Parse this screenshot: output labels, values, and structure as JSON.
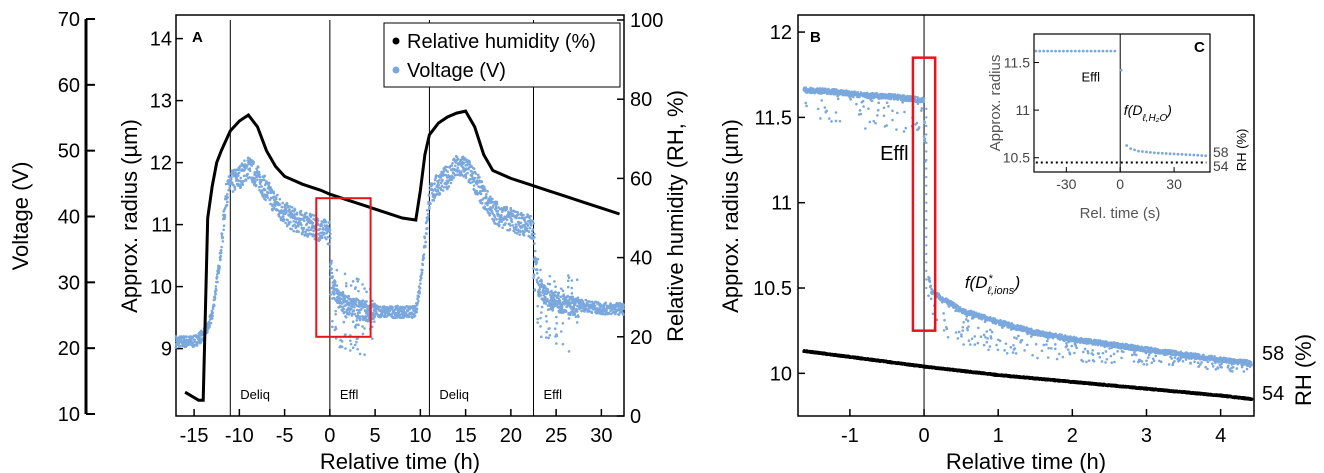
{
  "colors": {
    "humidity": "#000000",
    "voltage": "#7aa8dc",
    "highlight_box": "#e8141b"
  },
  "chart_data": [
    {
      "panel": "A",
      "type": "scatter",
      "x_axis": {
        "label": "Relative time (h)",
        "range": [
          -17,
          32.5
        ],
        "ticks": [
          -15,
          -10,
          -5,
          0,
          5,
          10,
          15,
          20,
          25,
          30
        ]
      },
      "y_axis_left_outer": {
        "label": "Voltage (V)",
        "range": [
          10,
          70
        ],
        "ticks": [
          10,
          20,
          30,
          40,
          50,
          60,
          70
        ]
      },
      "y_axis_left_inner": {
        "label": "Approx. radius  (µm)",
        "range": [
          8.3,
          14.3
        ],
        "ticks": [
          9,
          10,
          11,
          12,
          13,
          14
        ]
      },
      "y_axis_right": {
        "label": "Relative humidity (RH, %)",
        "range": [
          0,
          100
        ],
        "ticks": [
          0,
          20,
          40,
          60,
          80,
          100
        ]
      },
      "legend": {
        "placement": "top-right",
        "entries": [
          "Relative humidity (%)",
          "Voltage (V)"
        ]
      },
      "phase_markers": [
        {
          "x": -11,
          "label": "Deliq"
        },
        {
          "x": 0,
          "label": "Effl"
        },
        {
          "x": 11,
          "label": "Deliq"
        },
        {
          "x": 22.5,
          "label": "Effl"
        }
      ],
      "highlight_box": {
        "x": [
          -1.5,
          4.5
        ],
        "y_rh": [
          20,
          55
        ]
      },
      "series": [
        {
          "name": "Relative humidity (%)",
          "axis": "right",
          "x": [
            -16,
            -14.5,
            -14,
            -13.5,
            -13,
            -12.5,
            -12,
            -11,
            -10,
            -9,
            -8,
            -7,
            -6,
            -5,
            -3,
            -1,
            0,
            2,
            4,
            6,
            8,
            9.5,
            10,
            10.5,
            11,
            12,
            13,
            14,
            15,
            16,
            17,
            18,
            20,
            22,
            24,
            26,
            28,
            30,
            32
          ],
          "y": [
            6,
            4,
            4,
            50,
            58,
            64,
            67,
            72,
            74.5,
            76,
            73,
            67,
            63,
            60.5,
            58.5,
            57,
            56,
            54.5,
            53,
            51.5,
            50,
            49.5,
            57,
            66,
            71,
            74,
            75.5,
            76.5,
            77,
            73,
            66,
            62,
            60,
            58.5,
            57,
            55.5,
            54,
            52.5,
            51
          ]
        },
        {
          "name": "Voltage (V)",
          "axis": "left_outer",
          "x": [
            -17,
            -15,
            -14,
            -13.5,
            -13,
            -12.5,
            -12,
            -11.5,
            -11,
            -10,
            -9,
            -8,
            -7,
            -6,
            -5,
            -4,
            -3,
            -2,
            -1,
            0,
            0.3,
            1,
            2,
            3,
            4,
            6,
            8,
            9.5,
            10,
            10.5,
            11,
            12,
            13,
            14,
            15,
            16,
            17,
            18,
            19,
            20,
            21,
            22,
            22.5,
            23,
            24,
            26,
            28,
            30,
            32
          ],
          "y": [
            21,
            21,
            22,
            23,
            25,
            30,
            35,
            43,
            45,
            46,
            47.5,
            46,
            44,
            42,
            40.5,
            39.5,
            39,
            38.5,
            38,
            37.5,
            30,
            28,
            27,
            26.5,
            26,
            25.5,
            25.5,
            25.5,
            30,
            36,
            43,
            45,
            46,
            47.5,
            47.5,
            45.5,
            43,
            41,
            40,
            39.5,
            39,
            38.5,
            38,
            30,
            28,
            27,
            26.5,
            26,
            26
          ]
        }
      ]
    },
    {
      "panel": "B",
      "type": "scatter",
      "x_axis": {
        "label": "Relative time (h)",
        "range": [
          -1.7,
          4.45
        ],
        "ticks": [
          -1,
          0,
          1,
          2,
          3,
          4
        ]
      },
      "y_axis_left": {
        "label": "Approx. radius  (µm)",
        "range": [
          9.75,
          12.1
        ],
        "ticks": [
          10,
          10.5,
          11,
          11.5,
          12
        ]
      },
      "y_axis_right": {
        "label": "RH (%)",
        "ticks": [
          54,
          58
        ]
      },
      "annotations": [
        {
          "text": "Effl",
          "x": -0.35,
          "y": 11.25
        },
        {
          "text_main": "f(D",
          "text_sub": "ℓ,ions",
          "text_sup": "*",
          "text_end": ")",
          "x": 0.55,
          "y": 10.5
        }
      ],
      "highlight_box": {
        "x": [
          -0.15,
          0.15
        ],
        "y": [
          10.25,
          11.85
        ]
      },
      "series": [
        {
          "name": "Relative humidity (%)",
          "x": [
            -1.6,
            0,
            1,
            2,
            3,
            4,
            4.4
          ],
          "y": [
            10.13,
            10.04,
            9.99,
            9.95,
            9.91,
            9.87,
            9.85
          ]
        },
        {
          "name": "Approx. radius",
          "x": [
            -1.6,
            -1.2,
            -0.8,
            -0.4,
            0,
            0.05,
            0.1,
            0.2,
            0.5,
            1,
            1.5,
            2,
            2.5,
            3,
            3.5,
            4,
            4.4
          ],
          "y": [
            11.66,
            11.65,
            11.63,
            11.62,
            11.6,
            10.6,
            10.48,
            10.45,
            10.37,
            10.3,
            10.24,
            10.2,
            10.17,
            10.14,
            10.11,
            10.08,
            10.06
          ]
        }
      ],
      "inset": {
        "panel": "C",
        "x_axis": {
          "label": "Rel. time (s)",
          "range": [
            -48,
            50
          ],
          "ticks": [
            -30,
            0,
            30
          ]
        },
        "y_axis_left": {
          "label": "Approx. radius",
          "range": [
            10.35,
            11.8
          ],
          "ticks": [
            10.5,
            11,
            11.5
          ]
        },
        "y_axis_right": {
          "label": "RH (%)",
          "ticks": [
            54,
            58
          ]
        },
        "annotations": [
          {
            "text": "Effl",
            "x": -16,
            "y": 11.3
          },
          {
            "text_main": "f(D",
            "text_sub": "ℓ,H₂O",
            "text_end": ")",
            "x": 2,
            "y": 10.95
          }
        ],
        "series": [
          {
            "name": "Approx. radius",
            "x": [
              -47,
              -40,
              -30,
              -20,
              -10,
              -3,
              0.5,
              2,
              5,
              10,
              20,
              30,
              40,
              48
            ],
            "y": [
              11.62,
              11.62,
              11.62,
              11.62,
              11.62,
              11.62,
              11.42,
              10.66,
              10.6,
              10.57,
              10.55,
              10.54,
              10.53,
              10.52
            ]
          },
          {
            "name": "Relative humidity (%)",
            "x": [
              -47,
              48
            ],
            "y": [
              10.45,
              10.45
            ]
          }
        ]
      }
    }
  ]
}
